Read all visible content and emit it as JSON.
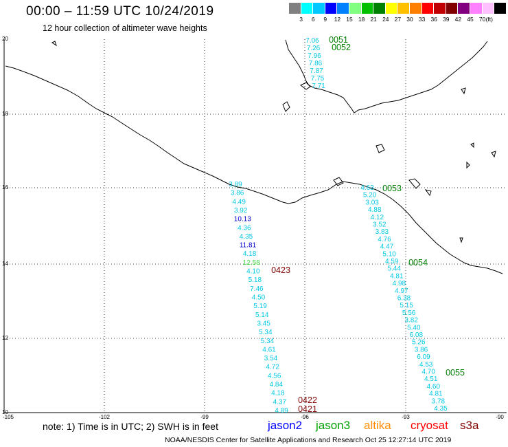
{
  "header": {
    "title": "00:00 – 11:59 UTC 10/24/2019",
    "subtitle": "12 hour collection of altimeter wave heights"
  },
  "colorbar": {
    "swatches": [
      "#808080",
      "#00ffff",
      "#00c8ff",
      "#0000ff",
      "#0080ff",
      "#80ff80",
      "#00c000",
      "#008000",
      "#ffff00",
      "#ffc000",
      "#ff8000",
      "#ff0000",
      "#c00000",
      "#800000",
      "#800080",
      "#ff80ff",
      "#ffc0ff",
      "#000000"
    ],
    "labels": [
      "3",
      "6",
      "9",
      "12",
      "15",
      "18",
      "21",
      "24",
      "27",
      "30",
      "33",
      "36",
      "39",
      "42",
      "45",
      "70"
    ],
    "unit": "(ft)"
  },
  "axes": {
    "y_labels": [
      "20",
      "18",
      "16",
      "14",
      "12",
      "10"
    ],
    "x_labels": [
      "-105",
      "-102",
      "-99",
      "-96",
      "-93",
      "-90"
    ]
  },
  "footer": {
    "note": "note:  1) Time is in UTC;  2) SWH is in feet",
    "missions": [
      {
        "name": "jason2",
        "color": "#0000ff"
      },
      {
        "name": "jason3",
        "color": "#00a000"
      },
      {
        "name": "altika",
        "color": "#ff8c00"
      },
      {
        "name": "cryosat",
        "color": "#ff0000"
      },
      {
        "name": "s3a",
        "color": "#800000"
      }
    ],
    "credit": "NOAA/NESDIS Center for Satellite Applications and Research     Oct 25 12:27:14 UTC 2019"
  },
  "tracks": [
    {
      "id": "t1",
      "values": [
        "7.06",
        "7.26",
        "7.96",
        "7.86",
        "7.87",
        "7.75",
        "7.71"
      ],
      "colors": [
        "c",
        "c",
        "c",
        "c",
        "c",
        "c",
        "c"
      ]
    },
    {
      "id": "t2",
      "values": [
        "3.89",
        "3.86",
        "4.49",
        "3.92",
        "10.13",
        "4.36",
        "4.35",
        "11.81",
        "4.18",
        "12.58",
        "4.10",
        "5.18",
        "7.46",
        "4.50",
        "5.19",
        "5.14",
        "3.45",
        "5.34",
        "5.34",
        "4.61",
        "3.54",
        "4.72",
        "4.56",
        "4.84",
        "4.18",
        "4.37",
        "4.89"
      ],
      "colors": [
        "c",
        "c",
        "c",
        "c",
        "b",
        "c",
        "c",
        "b",
        "c",
        "g",
        "c",
        "c",
        "c",
        "c",
        "c",
        "c",
        "c",
        "c",
        "c",
        "c",
        "c",
        "c",
        "c",
        "c",
        "c",
        "c",
        "c"
      ]
    },
    {
      "id": "t3",
      "values": [
        "4.63",
        "5.20",
        "3.03",
        "4.88",
        "4.12",
        "3.52",
        "3.83",
        "4.76",
        "4.47",
        "5.10",
        "4.59",
        "5.44",
        "4.81",
        "4.98",
        "4.97",
        "6.38",
        "5.15",
        "5.56",
        "3.82",
        "5.40",
        "6.08",
        "5.26",
        "3.86",
        "6.09",
        "4.53",
        "4.70",
        "4.51",
        "4.60",
        "4.81",
        "3.78",
        "4.35"
      ],
      "colors": [
        "c",
        "c",
        "c",
        "c",
        "c",
        "c",
        "c",
        "c",
        "c",
        "c",
        "c",
        "c",
        "c",
        "c",
        "c",
        "c",
        "c",
        "c",
        "c",
        "c",
        "c",
        "c",
        "c",
        "c",
        "c",
        "c",
        "c",
        "c",
        "c",
        "c",
        "c"
      ]
    }
  ],
  "time_labels": [
    {
      "text": "0051",
      "color": "#008000"
    },
    {
      "text": "0052",
      "color": "#008000"
    },
    {
      "text": "0053",
      "color": "#008000"
    },
    {
      "text": "0054",
      "color": "#008000"
    },
    {
      "text": "0055",
      "color": "#008000"
    },
    {
      "text": "0423",
      "color": "#800000"
    },
    {
      "text": "0422",
      "color": "#800000"
    },
    {
      "text": "0421",
      "color": "#800000"
    }
  ]
}
